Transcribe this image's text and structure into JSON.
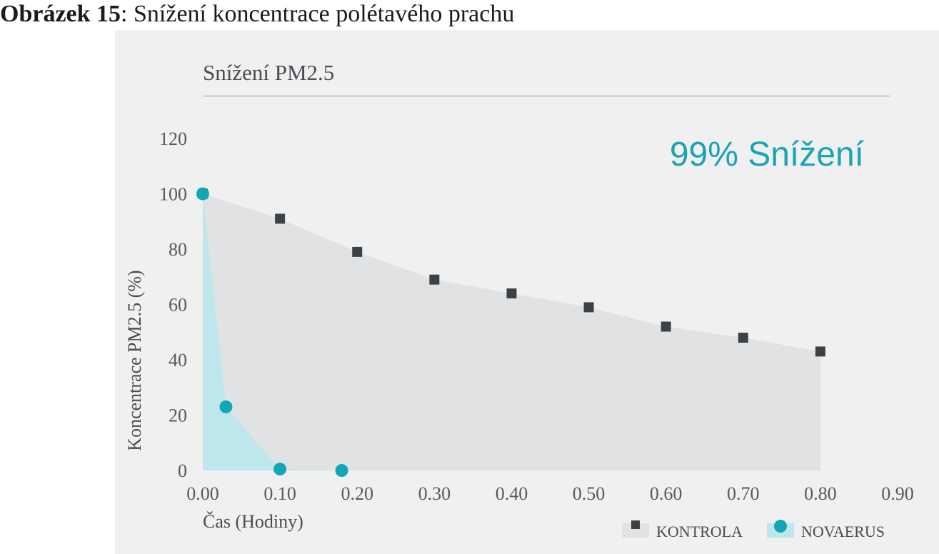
{
  "caption": {
    "number": "Obrázek 15",
    "text": ": Snížení koncentrace polétavého prachu"
  },
  "chart_data": {
    "type": "area",
    "title": "Snížení PM2.5",
    "annotation": "99% Snížení",
    "xlabel": "Čas (Hodiny)",
    "ylabel": "Koncentrace PM2.5 (%)",
    "xlim": [
      0,
      0.9
    ],
    "ylim": [
      0,
      120
    ],
    "xticks": [
      "0.00",
      "0.10",
      "0.20",
      "0.30",
      "0.40",
      "0.50",
      "0.60",
      "0.70",
      "0.80",
      "0.90"
    ],
    "yticks": [
      "0",
      "20",
      "40",
      "60",
      "80",
      "100",
      "120"
    ],
    "grid": false,
    "legend_position": "bottom-right",
    "series": [
      {
        "name": "KONTROLA",
        "marker": "square",
        "color": "#3c4146",
        "fill": "#e1e2e4",
        "x": [
          0.0,
          0.1,
          0.2,
          0.3,
          0.4,
          0.5,
          0.6,
          0.7,
          0.8
        ],
        "y": [
          100,
          91,
          79,
          69,
          64,
          59,
          52,
          48,
          43
        ]
      },
      {
        "name": "NOVAERUS",
        "marker": "circle",
        "color": "#13a6b6",
        "fill": "#bde7eb",
        "x": [
          0.0,
          0.03,
          0.1,
          0.18
        ],
        "y": [
          100,
          23,
          0.5,
          0
        ]
      }
    ]
  }
}
